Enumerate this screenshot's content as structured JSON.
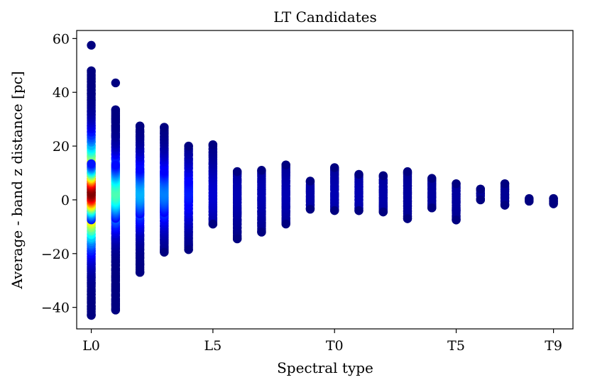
{
  "chart_data": {
    "type": "scatter",
    "title": "LT Candidates",
    "xlabel": "Spectral type",
    "ylabel": "Average - band z distance [pc]",
    "x_categories": [
      "L0",
      "L1",
      "L2",
      "L3",
      "L4",
      "L5",
      "L6",
      "L7",
      "L8",
      "L9",
      "T0",
      "T1",
      "T2",
      "T3",
      "T4",
      "T5",
      "T6",
      "T7",
      "T8",
      "T9"
    ],
    "x_tick_labels": [
      "L0",
      "L5",
      "T0",
      "T5",
      "T9"
    ],
    "y_ticks": [
      -40,
      -20,
      0,
      20,
      40,
      60
    ],
    "xlim": [
      -0.6,
      19.8
    ],
    "ylim": [
      -48,
      63
    ],
    "grid": false,
    "colormap": "jet (point density)",
    "columns": [
      {
        "type": "L0",
        "ymin": -43,
        "ymax": 57.5,
        "outliers": [
          57.5
        ],
        "density": 1.0
      },
      {
        "type": "L1",
        "ymin": -41,
        "ymax": 43.5,
        "outliers": [
          43.5
        ],
        "density": 0.45
      },
      {
        "type": "L2",
        "ymin": -27,
        "ymax": 27.5,
        "outliers": [],
        "density": 0.3
      },
      {
        "type": "L3",
        "ymin": -19.5,
        "ymax": 27,
        "outliers": [],
        "density": 0.25
      },
      {
        "type": "L4",
        "ymin": -18.5,
        "ymax": 20,
        "outliers": [],
        "density": 0.15
      },
      {
        "type": "L5",
        "ymin": -9,
        "ymax": 20.5,
        "outliers": [],
        "density": 0.08
      },
      {
        "type": "L6",
        "ymin": -14.5,
        "ymax": 10.5,
        "outliers": [],
        "density": 0.05
      },
      {
        "type": "L7",
        "ymin": -12,
        "ymax": 11,
        "outliers": [],
        "density": 0.05
      },
      {
        "type": "L8",
        "ymin": -9,
        "ymax": 13,
        "outliers": [],
        "density": 0.05
      },
      {
        "type": "L9",
        "ymin": -3.5,
        "ymax": 7,
        "outliers": [],
        "density": 0.04
      },
      {
        "type": "T0",
        "ymin": -4,
        "ymax": 12,
        "outliers": [],
        "density": 0.05
      },
      {
        "type": "T1",
        "ymin": -4,
        "ymax": 9.5,
        "outliers": [],
        "density": 0.05
      },
      {
        "type": "T2",
        "ymin": -4.5,
        "ymax": 9,
        "outliers": [],
        "density": 0.04
      },
      {
        "type": "T3",
        "ymin": -7,
        "ymax": 10.5,
        "outliers": [],
        "density": 0.03
      },
      {
        "type": "T4",
        "ymin": -3,
        "ymax": 8,
        "outliers": [],
        "density": 0.03
      },
      {
        "type": "T5",
        "ymin": -7.5,
        "ymax": 6,
        "outliers": [],
        "density": 0.03
      },
      {
        "type": "T6",
        "ymin": 0,
        "ymax": 4,
        "outliers": [],
        "density": 0.02
      },
      {
        "type": "T7",
        "ymin": -2,
        "ymax": 6,
        "outliers": [],
        "density": 0.02
      },
      {
        "type": "T8",
        "ymin": -0.5,
        "ymax": 0.5,
        "outliers": [],
        "density": 0.01
      },
      {
        "type": "T9",
        "ymin": -1.5,
        "ymax": 0.5,
        "outliers": [],
        "density": 0.01
      }
    ]
  }
}
